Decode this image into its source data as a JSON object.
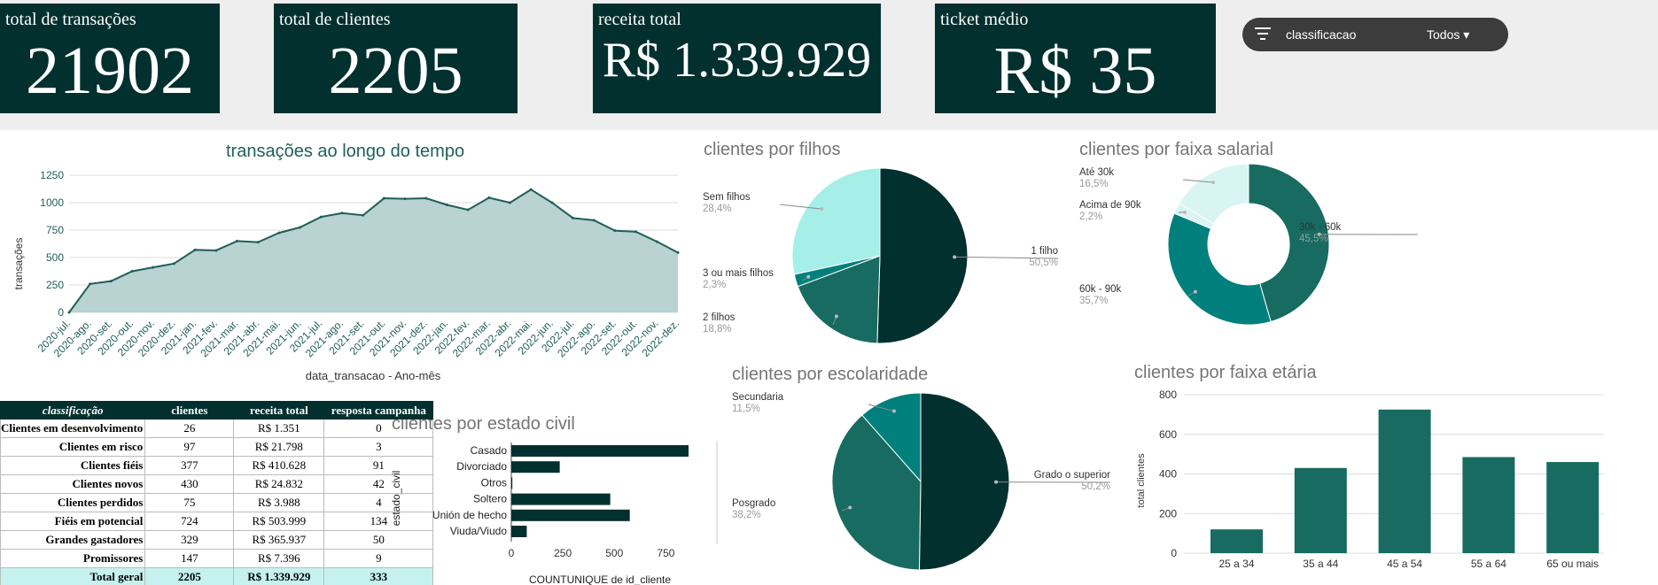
{
  "kpis": {
    "transacoes": {
      "label": "total de transações",
      "value": "21902"
    },
    "clientes": {
      "label": "total de clientes",
      "value": "2205"
    },
    "receita": {
      "label": "receita total",
      "value": "R$ 1.339.929"
    },
    "ticket": {
      "label": "ticket médio",
      "value": "R$ 35"
    }
  },
  "filter": {
    "name": "classificacao",
    "value": "Todos",
    "icon": "filter-icon",
    "caret": "▾"
  },
  "table": {
    "headers": [
      "classificação",
      "clientes",
      "receita total",
      "resposta campanha"
    ],
    "rows": [
      [
        "Clientes em desenvolvimento",
        "26",
        "R$ 1.351",
        "0"
      ],
      [
        "Clientes em risco",
        "97",
        "R$ 21.798",
        "3"
      ],
      [
        "Clientes fiéis",
        "377",
        "R$ 410.628",
        "91"
      ],
      [
        "Clientes novos",
        "430",
        "R$ 24.832",
        "42"
      ],
      [
        "Clientes perdidos",
        "75",
        "R$ 3.988",
        "4"
      ],
      [
        "Fiéis em potencial",
        "724",
        "R$ 503.999",
        "134"
      ],
      [
        "Grandes gastadores",
        "329",
        "R$ 365.937",
        "50"
      ],
      [
        "Promissores",
        "147",
        "R$ 7.396",
        "9"
      ]
    ],
    "total": [
      "Total geral",
      "2205",
      "R$ 1.339.929",
      "333"
    ]
  },
  "colors": {
    "dark": "#01302f",
    "teal": "#176b60",
    "mid": "#00807d",
    "light": "#a6efe9",
    "lighter": "#d9f5f3",
    "area": "#b8d3d1",
    "line": "#1f5f59"
  },
  "chart_data": [
    {
      "type": "area",
      "title": "transações ao longo do tempo",
      "xlabel": "data_transacao - Ano-mês",
      "ylabel": "transações",
      "ylim": [
        0,
        1250
      ],
      "yticks": [
        "0",
        "250",
        "500",
        "750",
        "1000",
        "1250"
      ],
      "tick_labels": [
        "2020-jul.",
        "2020-ago.",
        "2020-set.",
        "2020-out.",
        "2020-nov.",
        "2020-dez.",
        "2021-jan.",
        "2021-fev.",
        "2021-mar.",
        "2021-abr.",
        "2021-mai.",
        "2021-jun.",
        "2021-jul.",
        "2021-ago.",
        "2021-set.",
        "2021-out.",
        "2021-nov.",
        "2021-dez.",
        "2022-jan.",
        "2022-fev.",
        "2022-mar.",
        "2022-abr.",
        "2022-mai.",
        "2022-jun.",
        "2022-jul.",
        "2022-ago.",
        "2022-set.",
        "2022-out.",
        "2022-nov.",
        "2022-dez."
      ],
      "x": [
        "2020-jul.",
        "2020-ago.",
        "2020-set.",
        "2020-out.",
        "2020-nov.",
        "2020-dez.",
        "2021-jan.",
        "2021-fev.",
        "2021-mar.",
        "2021-abr.",
        "2021-mai.",
        "2021-jun.",
        "2021-jul.",
        "2021-ago.",
        "2021-set.",
        "2021-out.",
        "2021-nov.",
        "2021-dez.",
        "2022-jan.",
        "2022-fev.",
        "2022-mar.",
        "2022-abr.",
        "2022-mai.",
        "2022-jun.",
        "2022-jul.",
        "2022-ago.",
        "2022-set.",
        "2022-out.",
        "2022-nov.",
        "2022-dez."
      ],
      "values": [
        0,
        260,
        285,
        375,
        410,
        445,
        570,
        565,
        650,
        640,
        725,
        775,
        870,
        905,
        885,
        1040,
        1035,
        1040,
        980,
        935,
        1045,
        1000,
        1120,
        1000,
        860,
        840,
        745,
        735,
        645,
        545
      ],
      "grid": true
    },
    {
      "type": "pie",
      "title": "clientes por filhos",
      "labels": [
        "1 filho",
        "2 filhos",
        "3 ou mais filhos",
        "Sem filhos"
      ],
      "values": [
        50.5,
        18.8,
        2.3,
        28.4
      ],
      "pct_labels": [
        "50,5%",
        "18,8%",
        "2,3%",
        "28,4%"
      ]
    },
    {
      "type": "pie",
      "title": "clientes por faixa salarial",
      "donut": true,
      "labels": [
        "30k - 60k",
        "60k - 90k",
        "Acima de 90k",
        "Até 30k"
      ],
      "values": [
        45.5,
        35.7,
        2.2,
        16.5
      ],
      "pct_labels": [
        "45,5%",
        "35,7%",
        "2,2%",
        "16,5%"
      ]
    },
    {
      "type": "pie",
      "title": "clientes por escolaridade",
      "labels": [
        "Grado o superior",
        "Posgrado",
        "Secundaria"
      ],
      "values": [
        50.2,
        38.2,
        11.5
      ],
      "pct_labels": [
        "50,2%",
        "38,2%",
        "11,5%"
      ]
    },
    {
      "type": "bar",
      "orientation": "horizontal",
      "title": "clientes por estado civil",
      "xlabel": "COUNTUNIQUE de id_cliente",
      "ylabel": "estado_civil",
      "categories": [
        "Casado",
        "Divorciado",
        "Otros",
        "Soltero",
        "Unión de hecho",
        "Viuda/Viudo"
      ],
      "values": [
        860,
        235,
        5,
        480,
        575,
        75
      ],
      "xlim": [
        0,
        860
      ],
      "xticks": [
        "0",
        "250",
        "500",
        "750"
      ]
    },
    {
      "type": "bar",
      "title": "clientes por faixa etária",
      "ylabel": "total clientes",
      "categories": [
        "25 a 34",
        "35 a 44",
        "45 a 54",
        "55 a 64",
        "65 ou mais"
      ],
      "values": [
        120,
        430,
        725,
        485,
        460
      ],
      "ylim": [
        0,
        800
      ],
      "yticks": [
        "0",
        "200",
        "400",
        "600",
        "800"
      ],
      "grid": true
    }
  ]
}
